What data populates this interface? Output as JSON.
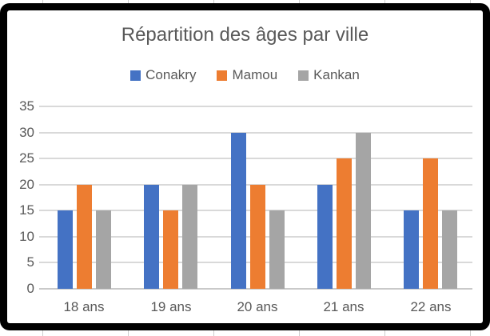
{
  "chart_data": {
    "type": "bar",
    "title": "Répartition des âges par ville",
    "categories": [
      "18 ans",
      "19 ans",
      "20 ans",
      "21 ans",
      "22 ans"
    ],
    "series": [
      {
        "name": "Conakry",
        "color": "#4472C4",
        "values": [
          15,
          20,
          30,
          20,
          15
        ]
      },
      {
        "name": "Mamou",
        "color": "#ED7D31",
        "values": [
          20,
          15,
          20,
          25,
          25
        ]
      },
      {
        "name": "Kankan",
        "color": "#A5A5A5",
        "values": [
          15,
          20,
          15,
          30,
          15
        ]
      }
    ],
    "xlabel": "",
    "ylabel": "",
    "ylim": [
      0,
      35
    ],
    "yticks": [
      0,
      5,
      10,
      15,
      20,
      25,
      30,
      35
    ],
    "grid": true,
    "legend_position": "top"
  },
  "colors": {
    "text": "#595959",
    "gridline": "#D9D9D9",
    "axis_line": "#C9C9C9",
    "frame": "#000000",
    "background": "#FFFFFF"
  }
}
